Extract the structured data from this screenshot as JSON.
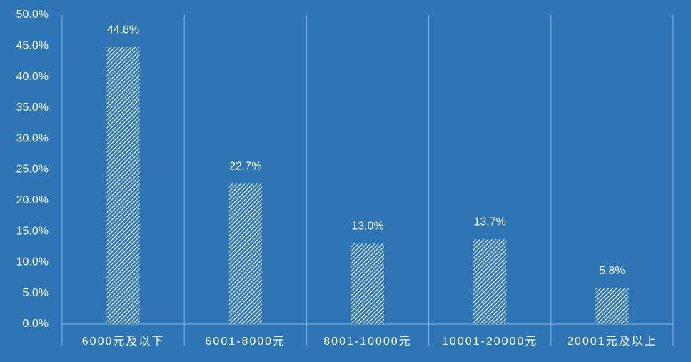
{
  "chart_data": {
    "type": "bar",
    "categories": [
      "6000元及以下",
      "6001-8000元",
      "8001-10000元",
      "10001-20000元",
      "20001元及以上"
    ],
    "values": [
      44.8,
      22.7,
      13.0,
      13.7,
      5.8
    ],
    "value_labels": [
      "44.8%",
      "22.7%",
      "13.0%",
      "13.7%",
      "5.8%"
    ],
    "color": "#ffffff",
    "ylim": [
      0,
      50
    ],
    "yticks": [
      {
        "value": 0,
        "label": "0.0%"
      },
      {
        "value": 5,
        "label": "5.0%"
      },
      {
        "value": 10,
        "label": "10.0%"
      },
      {
        "value": 15,
        "label": "15.0%"
      },
      {
        "value": 20,
        "label": "20.0%"
      },
      {
        "value": 25,
        "label": "25.0%"
      },
      {
        "value": 30,
        "label": "30.0%"
      },
      {
        "value": 35,
        "label": "35.0%"
      },
      {
        "value": 40,
        "label": "40.0%"
      },
      {
        "value": 45,
        "label": "45.0%"
      },
      {
        "value": 50,
        "label": "50.0%"
      }
    ]
  }
}
